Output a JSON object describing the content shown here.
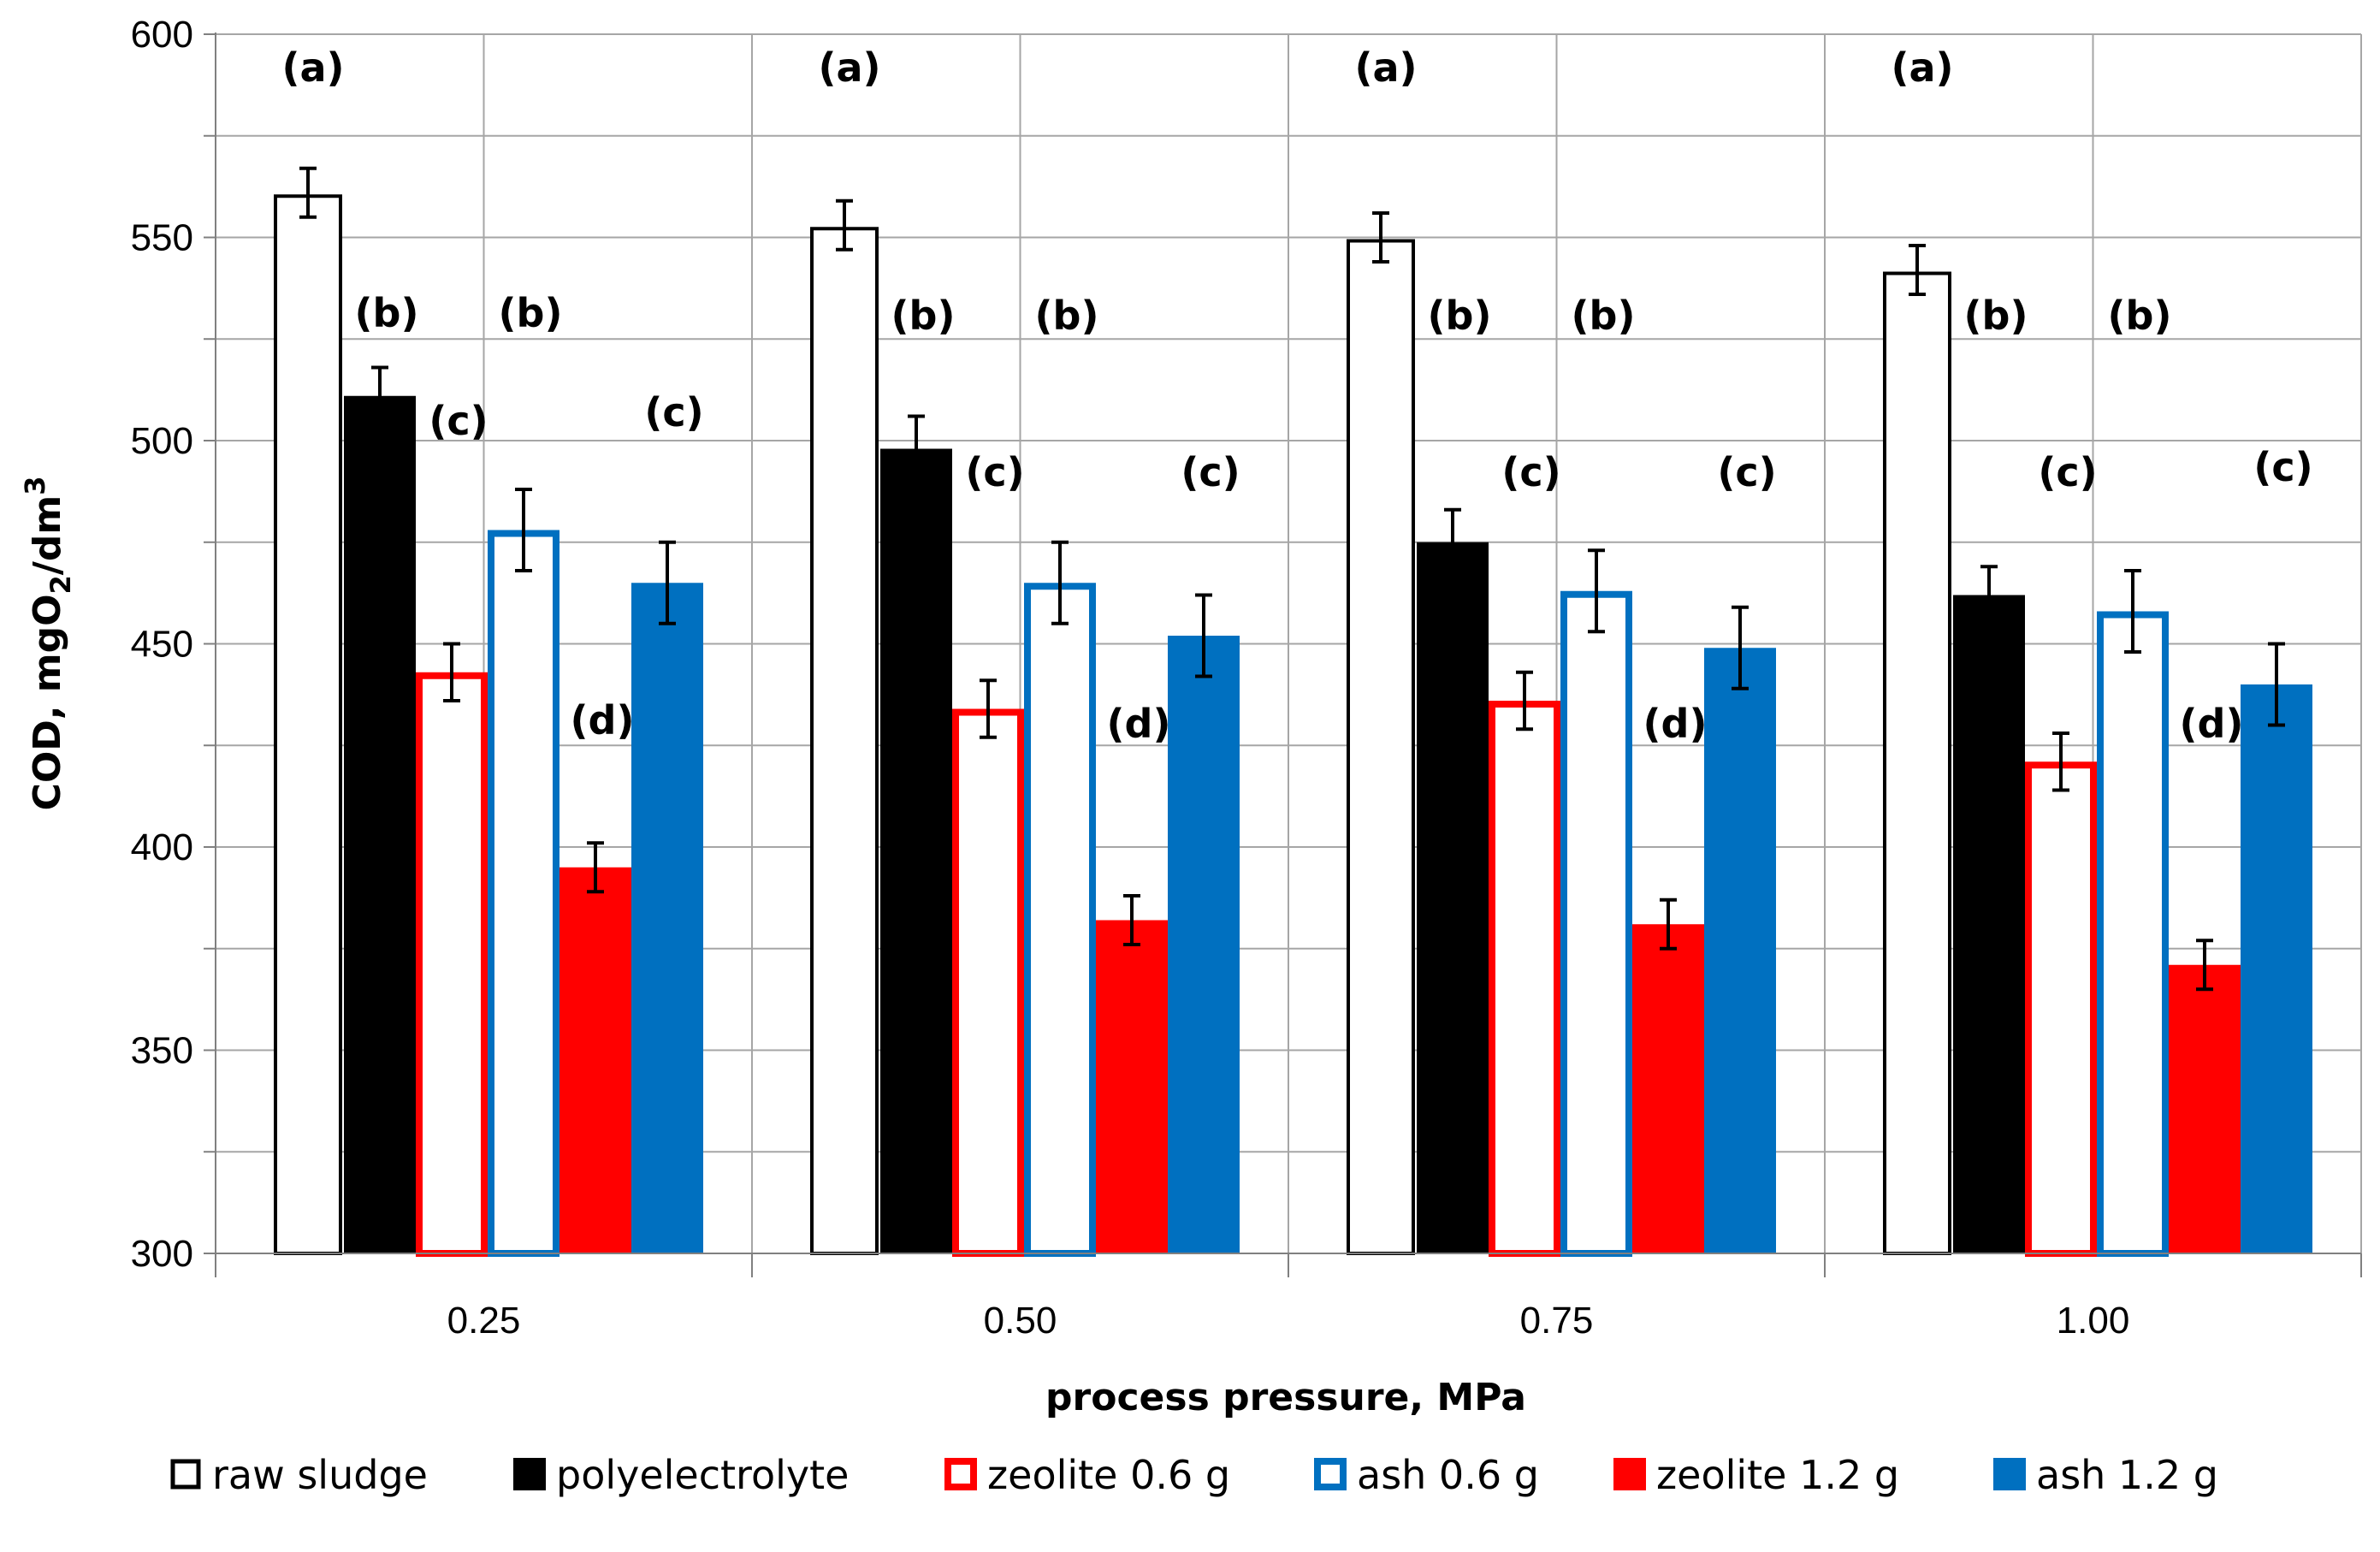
{
  "chart_data": {
    "type": "bar",
    "title": "",
    "xlabel": "process pressure, MPa",
    "ylabel": "COD, mgO",
    "ylabel_sub": "2",
    "ylabel_rest": "/dm",
    "ylabel_sup": "3",
    "categories": [
      "0.25",
      "0.50",
      "0.75",
      "1.00"
    ],
    "ylim": [
      300,
      600
    ],
    "yticks": [
      300,
      350,
      400,
      450,
      500,
      550,
      600
    ],
    "yticks_labels": [
      "300",
      "350",
      "400",
      "450",
      "500",
      "550",
      "600"
    ],
    "grid": true,
    "legend_position": "bottom",
    "series": [
      {
        "name": "raw sludge",
        "fill": "#ffffff",
        "stroke": "#000000",
        "values": [
          561,
          553,
          550,
          542
        ],
        "errors": [
          6,
          6,
          6,
          6
        ],
        "letters": [
          "(a)",
          "(a)",
          "(a)",
          "(a)"
        ]
      },
      {
        "name": "polyelectrolyte",
        "fill": "#000000",
        "stroke": "#000000",
        "values": [
          511,
          498,
          475,
          462
        ],
        "errors": [
          7,
          8,
          8,
          7
        ],
        "letters": [
          "(b)",
          "(b)",
          "(b)",
          "(b)"
        ]
      },
      {
        "name": "zeolite 0.6 g",
        "fill": "#ffffff",
        "stroke": "#ff0000",
        "values": [
          443,
          434,
          436,
          421
        ],
        "errors": [
          7,
          7,
          7,
          7
        ],
        "letters": [
          "(c)",
          "(c)",
          "(c)",
          "(c)"
        ]
      },
      {
        "name": "ash 0.6 g",
        "fill": "#ffffff",
        "stroke": "#0070c0",
        "values": [
          478,
          465,
          463,
          458
        ],
        "errors": [
          10,
          10,
          10,
          10
        ],
        "letters": [
          "(b)",
          "(b)",
          "(b)",
          "(b)"
        ]
      },
      {
        "name": "zeolite 1.2 g",
        "fill": "#ff0000",
        "stroke": "#ff0000",
        "values": [
          395,
          382,
          381,
          371
        ],
        "errors": [
          6,
          6,
          6,
          6
        ],
        "letters": [
          "(d)",
          "(d)",
          "(d)",
          "(d)"
        ]
      },
      {
        "name": "ash 1.2 g",
        "fill": "#0070c0",
        "stroke": "#0070c0",
        "values": [
          465,
          452,
          449,
          440
        ],
        "errors": [
          10,
          10,
          10,
          10
        ],
        "letters": [
          "(c)",
          "(c)",
          "(c)",
          "(c)"
        ]
      }
    ]
  }
}
